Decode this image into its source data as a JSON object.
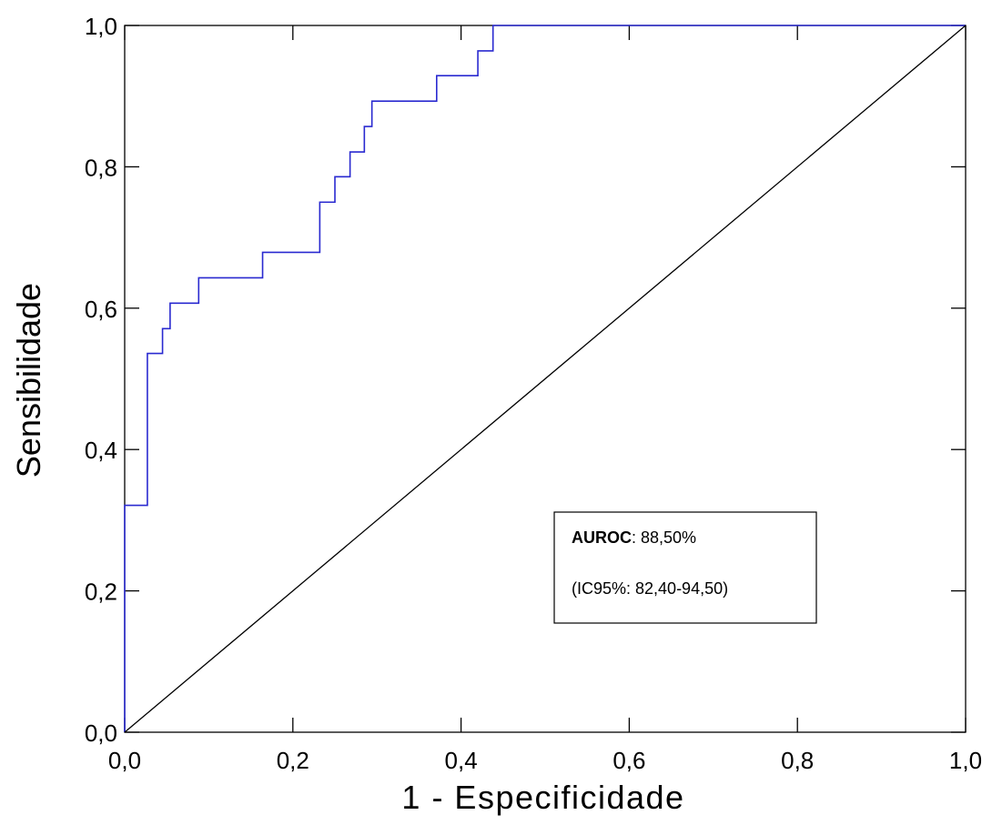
{
  "chart_data": {
    "type": "line",
    "xlabel": "1 - Especificidade",
    "ylabel": "Sensibilidade",
    "xlim": [
      0,
      1
    ],
    "ylim": [
      0,
      1
    ],
    "x_ticks": [
      "0,0",
      "0,2",
      "0,4",
      "0,6",
      "0,8",
      "1,0"
    ],
    "y_ticks": [
      "0,0",
      "0,2",
      "0,4",
      "0,6",
      "0,8",
      "1,0"
    ],
    "grid": false,
    "series": [
      {
        "color": "#2a2ad0",
        "x": [
          0.0,
          0.0,
          0.0,
          0.027,
          0.027,
          0.045,
          0.045,
          0.054,
          0.054,
          0.088,
          0.088,
          0.164,
          0.164,
          0.232,
          0.232,
          0.25,
          0.25,
          0.268,
          0.268,
          0.285,
          0.285,
          0.294,
          0.294,
          0.371,
          0.371,
          0.42,
          0.42,
          0.438,
          0.438,
          1.0
        ],
        "y": [
          0.0,
          0.036,
          0.321,
          0.321,
          0.536,
          0.536,
          0.571,
          0.571,
          0.607,
          0.607,
          0.643,
          0.643,
          0.679,
          0.679,
          0.75,
          0.75,
          0.786,
          0.786,
          0.821,
          0.821,
          0.857,
          0.857,
          0.893,
          0.893,
          0.929,
          0.929,
          0.964,
          0.964,
          1.0,
          1.0
        ]
      },
      {
        "color": "#000000",
        "x": [
          0.0,
          1.0
        ],
        "y": [
          0.0,
          1.0
        ]
      }
    ],
    "annotation": {
      "bold_label": "AUROC",
      "value_text": ": 88,50%",
      "ci_text": "(IC95%: 82,40-94,50)"
    }
  }
}
